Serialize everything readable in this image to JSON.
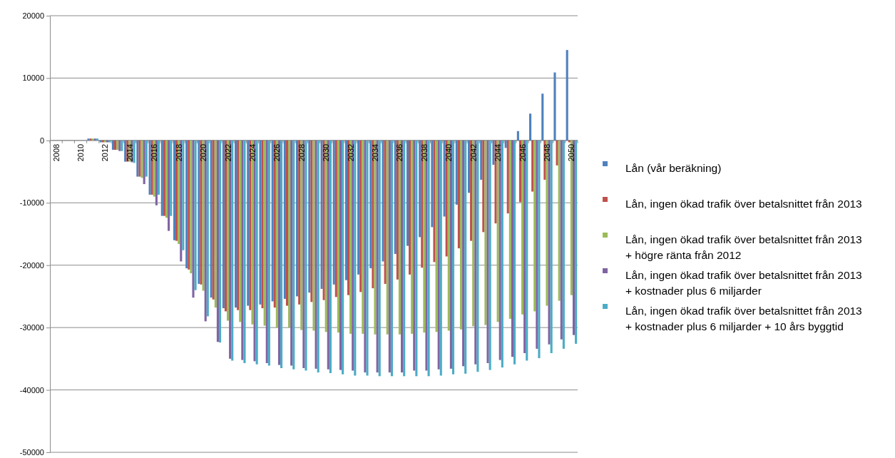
{
  "chart_data": {
    "type": "bar",
    "categories": [
      "2008",
      null,
      "2010",
      null,
      "2012",
      null,
      "2014",
      null,
      "2016",
      null,
      "2018",
      null,
      "2020",
      null,
      "2022",
      null,
      "2024",
      null,
      "2026",
      null,
      "2028",
      null,
      "2030",
      null,
      "2032",
      null,
      "2034",
      null,
      "2036",
      null,
      "2038",
      null,
      "2040",
      null,
      "2042",
      null,
      "2044",
      null,
      "2046",
      null,
      "2048",
      null,
      "2050"
    ],
    "series": [
      {
        "name": "Lån (vår beräkning)",
        "color": "#4f81bd",
        "values": [
          0,
          0,
          0,
          300,
          -300,
          -1500,
          -3400,
          -5800,
          -8700,
          -12100,
          -16000,
          -20500,
          -23000,
          -25200,
          -26900,
          -26800,
          -26500,
          -26300,
          -25800,
          -25400,
          -25000,
          -24400,
          -23800,
          -23100,
          -22400,
          -21500,
          -20500,
          -19400,
          -18200,
          -16900,
          -15500,
          -13900,
          -12200,
          -10300,
          -8400,
          -6300,
          -3900,
          -1200,
          1500,
          4300,
          7500,
          10900,
          14500
        ]
      },
      {
        "name": "Lån, ingen ökad trafik över betalsnittet från 2013",
        "color": "#c0504d",
        "values": [
          0,
          0,
          0,
          300,
          -300,
          -1500,
          -3400,
          -5800,
          -8700,
          -12100,
          -16100,
          -20700,
          -23100,
          -25500,
          -27400,
          -27200,
          -27200,
          -26900,
          -26800,
          -26500,
          -26300,
          -25900,
          -25600,
          -25100,
          -24800,
          -24300,
          -23700,
          -23000,
          -22300,
          -21500,
          -20400,
          -19500,
          -18600,
          -17300,
          -16100,
          -14700,
          -13300,
          -11700,
          -9900,
          -8200,
          -6300,
          -4000,
          -300
        ]
      },
      {
        "name": "Lån, ingen ökad trafik över betalsnittet från 2013\n+ högre ränta från 2012",
        "color": "#9bbb59",
        "values": [
          0,
          0,
          0,
          300,
          -300,
          -1500,
          -3400,
          -6000,
          -9000,
          -12400,
          -16600,
          -21300,
          -24100,
          -26800,
          -28900,
          -29100,
          -29500,
          -29700,
          -30000,
          -30000,
          -30400,
          -30500,
          -30700,
          -30800,
          -31000,
          -31000,
          -31100,
          -31100,
          -31100,
          -31000,
          -30800,
          -30700,
          -30500,
          -30300,
          -29800,
          -29600,
          -29100,
          -28600,
          -27900,
          -27400,
          -26500,
          -25700,
          -24800
        ]
      },
      {
        "name": "Lån, ingen ökad trafik över betalsnittet från 2013\n+ kostnader plus 6 miljarder",
        "color": "#8064a2",
        "values": [
          0,
          0,
          0,
          300,
          -300,
          -1700,
          -3500,
          -7000,
          -10400,
          -14500,
          -19400,
          -25200,
          -29000,
          -32300,
          -35000,
          -35200,
          -35400,
          -35700,
          -36000,
          -36100,
          -36500,
          -36600,
          -36700,
          -36800,
          -36900,
          -37200,
          -37200,
          -37200,
          -37200,
          -36900,
          -36900,
          -36700,
          -36600,
          -36200,
          -35900,
          -35700,
          -35200,
          -34700,
          -34100,
          -33400,
          -32700,
          -31900,
          -31200
        ]
      },
      {
        "name": "Lån, ingen ökad trafik över betalsnittet från 2013\n+ kostnader plus 6 miljarder + 10 års byggtid",
        "color": "#4bacc6",
        "values": [
          0,
          0,
          0,
          300,
          -300,
          -1700,
          -3600,
          -5800,
          -8700,
          -12100,
          -17600,
          -24000,
          -28200,
          -32400,
          -35300,
          -35700,
          -35900,
          -36100,
          -36500,
          -36700,
          -36900,
          -37200,
          -37300,
          -37500,
          -37700,
          -37700,
          -37800,
          -37800,
          -37800,
          -37800,
          -37800,
          -37700,
          -37500,
          -37400,
          -37100,
          -36800,
          -36400,
          -35900,
          -35300,
          -34900,
          -34100,
          -33400,
          -32600
        ]
      }
    ],
    "ylim": [
      -50000,
      20000
    ],
    "yticks": [
      -50000,
      -40000,
      -30000,
      -20000,
      -10000,
      0,
      10000,
      20000
    ],
    "grid": "y",
    "legend": "right"
  }
}
